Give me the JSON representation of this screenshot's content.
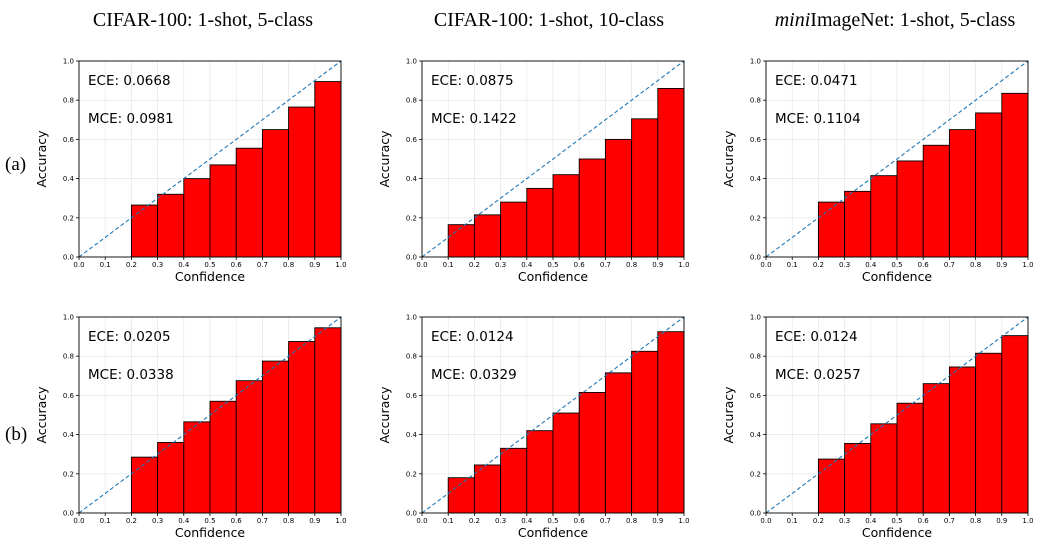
{
  "figure": {
    "column_titles": [
      {
        "prefix": "",
        "italic": "",
        "rest": "CIFAR-100: 1-shot, 5-class"
      },
      {
        "prefix": "",
        "italic": "",
        "rest": "CIFAR-100: 1-shot, 10-class"
      },
      {
        "prefix": "",
        "italic": "mini",
        "rest": "ImageNet: 1-shot, 5-class"
      }
    ],
    "row_labels": [
      "(a)",
      "(b)"
    ]
  },
  "colors": {
    "bar_fill": "#ff0000",
    "bar_edge": "#000000",
    "diagonal": "#1f77b4",
    "grid": "#e6e6e6"
  },
  "chart_data": [
    {
      "type": "bar",
      "panel": "(a) CIFAR-100: 1-shot, 5-class",
      "xlabel": "Confidence",
      "ylabel": "Accuracy",
      "xlim": [
        0,
        1
      ],
      "ylim": [
        0,
        1
      ],
      "ticks": [
        "0.0",
        "0.1",
        "0.2",
        "0.3",
        "0.4",
        "0.5",
        "0.6",
        "0.7",
        "0.8",
        "0.9",
        "1.0"
      ],
      "yticks": [
        "0.0",
        "0.2",
        "0.4",
        "0.6",
        "0.8",
        "1.0"
      ],
      "bin_edges": [
        0.2,
        0.3,
        0.4,
        0.5,
        0.6,
        0.7,
        0.8,
        0.9,
        1.0
      ],
      "values": [
        0.265,
        0.32,
        0.4,
        0.47,
        0.555,
        0.65,
        0.765,
        0.895
      ],
      "ece": "ECE: 0.0668",
      "mce": "MCE: 0.0981",
      "diagonal": "perfect calibration (dashed)",
      "grid": true
    },
    {
      "type": "bar",
      "panel": "(a) CIFAR-100: 1-shot, 10-class",
      "xlabel": "Confidence",
      "ylabel": "Accuracy",
      "xlim": [
        0,
        1
      ],
      "ylim": [
        0,
        1
      ],
      "ticks": [
        "0.0",
        "0.1",
        "0.2",
        "0.3",
        "0.4",
        "0.5",
        "0.6",
        "0.7",
        "0.8",
        "0.9",
        "1.0"
      ],
      "yticks": [
        "0.0",
        "0.2",
        "0.4",
        "0.6",
        "0.8",
        "1.0"
      ],
      "bin_edges": [
        0.1,
        0.2,
        0.3,
        0.4,
        0.5,
        0.6,
        0.7,
        0.8,
        0.9,
        1.0
      ],
      "values": [
        0.165,
        0.215,
        0.28,
        0.35,
        0.42,
        0.5,
        0.6,
        0.705,
        0.86
      ],
      "ece": "ECE: 0.0875",
      "mce": "MCE: 0.1422",
      "diagonal": "perfect calibration (dashed)",
      "grid": true
    },
    {
      "type": "bar",
      "panel": "(a) miniImageNet: 1-shot, 5-class",
      "xlabel": "Confidence",
      "ylabel": "Accuracy",
      "xlim": [
        0,
        1
      ],
      "ylim": [
        0,
        1
      ],
      "ticks": [
        "0.0",
        "0.1",
        "0.2",
        "0.3",
        "0.4",
        "0.5",
        "0.6",
        "0.7",
        "0.8",
        "0.9",
        "1.0"
      ],
      "yticks": [
        "0.0",
        "0.2",
        "0.4",
        "0.6",
        "0.8",
        "1.0"
      ],
      "bin_edges": [
        0.2,
        0.3,
        0.4,
        0.5,
        0.6,
        0.7,
        0.8,
        0.9,
        1.0
      ],
      "values": [
        0.28,
        0.335,
        0.415,
        0.49,
        0.57,
        0.65,
        0.735,
        0.835
      ],
      "ece": "ECE: 0.0471",
      "mce": "MCE: 0.1104",
      "diagonal": "perfect calibration (dashed)",
      "grid": true
    },
    {
      "type": "bar",
      "panel": "(b) CIFAR-100: 1-shot, 5-class",
      "xlabel": "Confidence",
      "ylabel": "Accuracy",
      "xlim": [
        0,
        1
      ],
      "ylim": [
        0,
        1
      ],
      "ticks": [
        "0.0",
        "0.1",
        "0.2",
        "0.3",
        "0.4",
        "0.5",
        "0.6",
        "0.7",
        "0.8",
        "0.9",
        "1.0"
      ],
      "yticks": [
        "0.0",
        "0.2",
        "0.4",
        "0.6",
        "0.8",
        "1.0"
      ],
      "bin_edges": [
        0.2,
        0.3,
        0.4,
        0.5,
        0.6,
        0.7,
        0.8,
        0.9,
        1.0
      ],
      "values": [
        0.285,
        0.36,
        0.465,
        0.57,
        0.675,
        0.775,
        0.875,
        0.945
      ],
      "ece": "ECE: 0.0205",
      "mce": "MCE: 0.0338",
      "diagonal": "perfect calibration (dashed)",
      "grid": true
    },
    {
      "type": "bar",
      "panel": "(b) CIFAR-100: 1-shot, 10-class",
      "xlabel": "Confidence",
      "ylabel": "Accuracy",
      "xlim": [
        0,
        1
      ],
      "ylim": [
        0,
        1
      ],
      "ticks": [
        "0.0",
        "0.1",
        "0.2",
        "0.3",
        "0.4",
        "0.5",
        "0.6",
        "0.7",
        "0.8",
        "0.9",
        "1.0"
      ],
      "yticks": [
        "0.0",
        "0.2",
        "0.4",
        "0.6",
        "0.8",
        "1.0"
      ],
      "bin_edges": [
        0.1,
        0.2,
        0.3,
        0.4,
        0.5,
        0.6,
        0.7,
        0.8,
        0.9,
        1.0
      ],
      "values": [
        0.18,
        0.245,
        0.33,
        0.42,
        0.51,
        0.615,
        0.715,
        0.825,
        0.925
      ],
      "ece": "ECE: 0.0124",
      "mce": "MCE: 0.0329",
      "diagonal": "perfect calibration (dashed)",
      "grid": true
    },
    {
      "type": "bar",
      "panel": "(b) miniImageNet: 1-shot, 5-class",
      "xlabel": "Confidence",
      "ylabel": "Accuracy",
      "xlim": [
        0,
        1
      ],
      "ylim": [
        0,
        1
      ],
      "ticks": [
        "0.0",
        "0.1",
        "0.2",
        "0.3",
        "0.4",
        "0.5",
        "0.6",
        "0.7",
        "0.8",
        "0.9",
        "1.0"
      ],
      "yticks": [
        "0.0",
        "0.2",
        "0.4",
        "0.6",
        "0.8",
        "1.0"
      ],
      "bin_edges": [
        0.2,
        0.3,
        0.4,
        0.5,
        0.6,
        0.7,
        0.8,
        0.9,
        1.0
      ],
      "values": [
        0.275,
        0.355,
        0.455,
        0.56,
        0.66,
        0.745,
        0.815,
        0.905
      ],
      "ece": "ECE: 0.0124",
      "mce": "MCE: 0.0257",
      "diagonal": "perfect calibration (dashed)",
      "grid": true
    }
  ]
}
